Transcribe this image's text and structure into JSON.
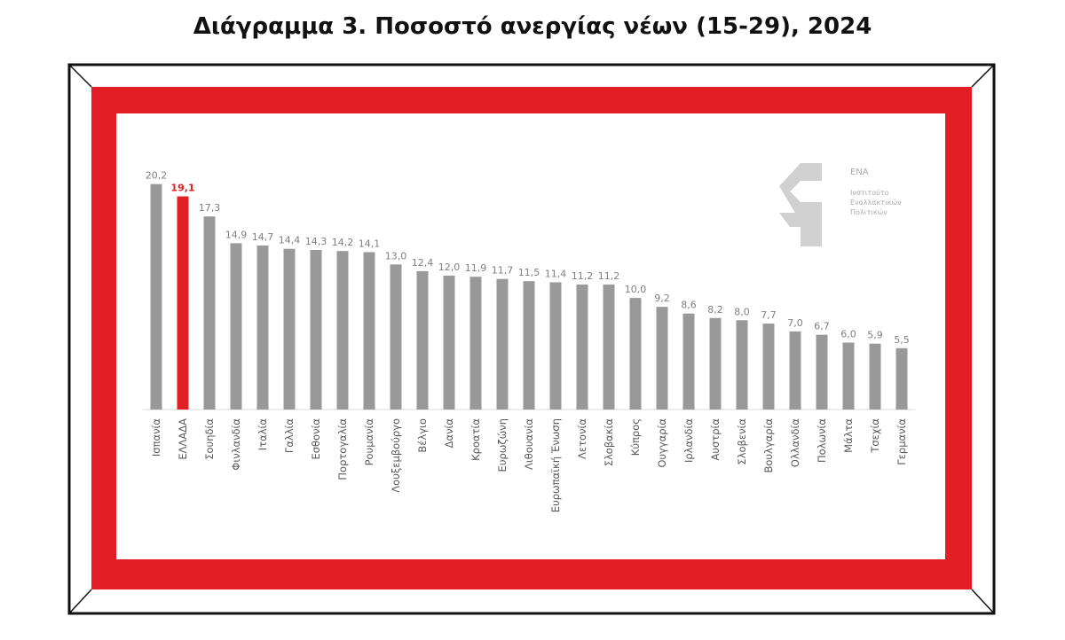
{
  "chart_data": {
    "type": "bar",
    "title": "Διάγραμμα 3. Ποσοστό ανεργίας νέων (15-29), 2024",
    "categories": [
      "Ισπανία",
      "ΕΛΛΑΔΑ",
      "Σουηδία",
      "Φινλανδία",
      "Ιταλία",
      "Γαλλία",
      "Εσθονία",
      "Πορτογαλία",
      "Ρουμανία",
      "Λουξεμβούργο",
      "Βέλγιο",
      "Δανία",
      "Κροατία",
      "Ευρωζώνη",
      "Λιθουανία",
      "Ευρωπαϊκή Ένωση",
      "Λετονία",
      "Σλοβακία",
      "Κύπρος",
      "Ουγγαρία",
      "Ιρλανδία",
      "Αυστρία",
      "Σλοβενία",
      "Βουλγαρία",
      "Ολλανδία",
      "Πολωνία",
      "Μάλτα",
      "Τσεχία",
      "Γερμανία"
    ],
    "values": [
      20.2,
      19.1,
      17.3,
      14.9,
      14.7,
      14.4,
      14.3,
      14.2,
      14.1,
      13.0,
      12.4,
      12.0,
      11.9,
      11.7,
      11.5,
      11.4,
      11.2,
      11.2,
      10.0,
      9.2,
      8.6,
      8.2,
      8.0,
      7.7,
      7.0,
      6.7,
      6.0,
      5.9,
      5.5
    ],
    "value_labels": [
      "20,2",
      "19,1",
      "17,3",
      "14,9",
      "14,7",
      "14,4",
      "14,3",
      "14,2",
      "14,1",
      "13,0",
      "12,4",
      "12,0",
      "11,9",
      "11,7",
      "11,5",
      "11,4",
      "11,2",
      "11,2",
      "10,0",
      "9,2",
      "8,6",
      "8,2",
      "8,0",
      "7,7",
      "7,0",
      "6,7",
      "6,0",
      "5,9",
      "5,5"
    ],
    "colors": [
      "#999999",
      "#e31e24",
      "#999999",
      "#999999",
      "#999999",
      "#999999",
      "#999999",
      "#999999",
      "#999999",
      "#999999",
      "#999999",
      "#999999",
      "#999999",
      "#999999",
      "#999999",
      "#999999",
      "#999999",
      "#999999",
      "#999999",
      "#999999",
      "#999999",
      "#999999",
      "#999999",
      "#999999",
      "#999999",
      "#999999",
      "#999999",
      "#999999",
      "#999999"
    ],
    "ylim": [
      0,
      22
    ],
    "logo_text": [
      "ΕΝΑ",
      "Ινστιτούτο",
      "Εναλλακτικών",
      "Πολιτικών"
    ]
  }
}
